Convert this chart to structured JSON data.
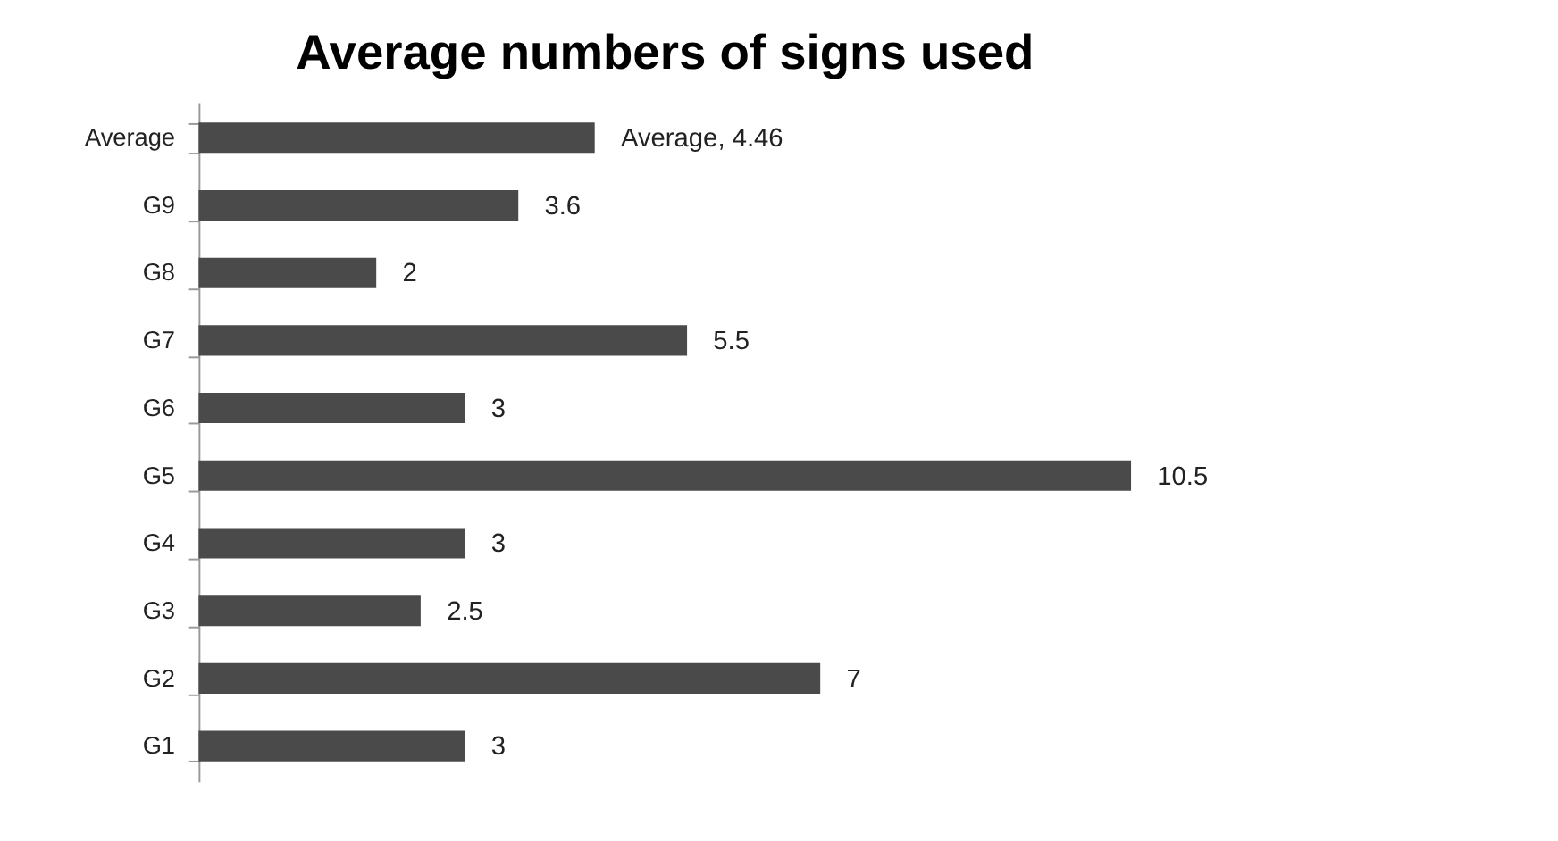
{
  "chart_data": {
    "type": "bar",
    "orientation": "horizontal",
    "title": "Average numbers of signs used",
    "categories": [
      "Average",
      "G9",
      "G8",
      "G7",
      "G6",
      "G5",
      "G4",
      "G3",
      "G2",
      "G1"
    ],
    "values": [
      4.46,
      3.6,
      2,
      5.5,
      3,
      10.5,
      3,
      2.5,
      7,
      3
    ],
    "value_labels": [
      "Average, 4.46",
      "3.6",
      "2",
      "5.5",
      "3",
      "10.5",
      "3",
      "2.5",
      "7",
      "3"
    ],
    "color": "#4a4a4a",
    "tick_labels": "y"
  }
}
